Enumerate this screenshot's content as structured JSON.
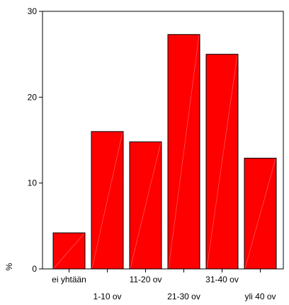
{
  "chart_data": {
    "type": "bar",
    "categories": [
      "ei yhtään",
      "1-10 ov",
      "11-20 ov",
      "21-30 ov",
      "31-40 ov",
      "yli 40 ov"
    ],
    "values": [
      4.2,
      16.0,
      14.8,
      27.3,
      25.0,
      12.9
    ],
    "title": "",
    "xlabel": "",
    "ylabel": "%",
    "ylim": [
      0,
      30
    ],
    "yticks": [
      "0",
      "10",
      "20",
      "30"
    ],
    "bar_color": "#ff0000",
    "grid": false
  }
}
